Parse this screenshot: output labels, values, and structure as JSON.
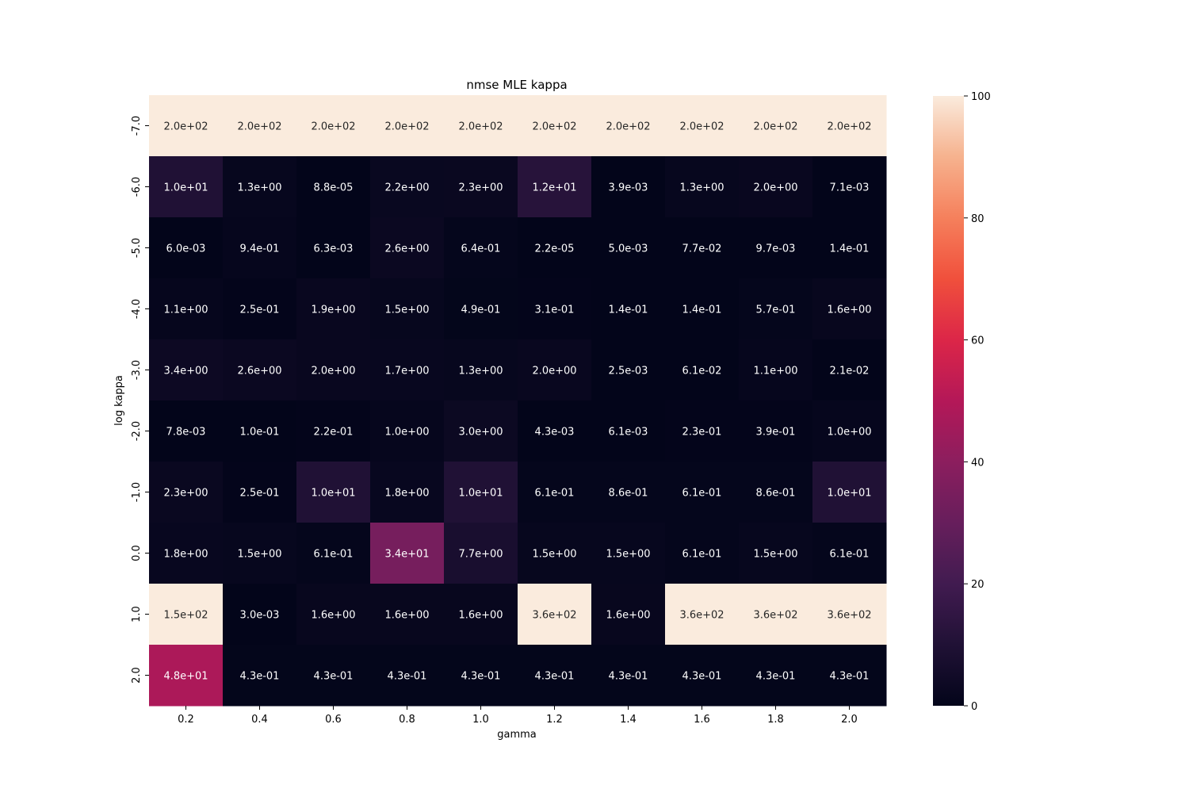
{
  "chart_data": {
    "type": "heatmap",
    "title": "nmse MLE  kappa",
    "xlabel": "gamma",
    "ylabel": "log kappa",
    "x_categories": [
      "0.2",
      "0.4",
      "0.6",
      "0.8",
      "1.0",
      "1.2",
      "1.4",
      "1.6",
      "1.8",
      "2.0"
    ],
    "y_categories": [
      "-7.0",
      "-6.0",
      "-5.0",
      "-4.0",
      "-3.0",
      "-2.0",
      "-1.0",
      "0.0",
      "1.0",
      "2.0"
    ],
    "values": [
      [
        200,
        200,
        200,
        200,
        200,
        200,
        200,
        200,
        200,
        200
      ],
      [
        10,
        1.3,
        8.8e-05,
        2.2,
        2.3,
        12,
        0.0039,
        1.3,
        2.0,
        0.0071
      ],
      [
        0.006,
        0.94,
        0.0063,
        2.6,
        0.64,
        2.2e-05,
        0.005,
        0.077,
        0.0097,
        0.14
      ],
      [
        1.1,
        0.25,
        1.9,
        1.5,
        0.49,
        0.31,
        0.14,
        0.14,
        0.57,
        1.6
      ],
      [
        3.4,
        2.6,
        2.0,
        1.7,
        1.3,
        2.0,
        0.0025,
        0.061,
        1.1,
        0.021
      ],
      [
        0.0078,
        0.1,
        0.22,
        1.0,
        3.0,
        0.0043,
        0.0061,
        0.23,
        0.39,
        1.0
      ],
      [
        2.3,
        0.25,
        10,
        1.8,
        10,
        0.61,
        0.86,
        0.61,
        0.86,
        10
      ],
      [
        1.8,
        1.5,
        0.61,
        34,
        7.7,
        1.5,
        1.5,
        0.61,
        1.5,
        0.61
      ],
      [
        150,
        0.003,
        1.6,
        1.6,
        1.6,
        360,
        1.6,
        360,
        360,
        360
      ],
      [
        48,
        0.43,
        0.43,
        0.43,
        0.43,
        0.43,
        0.43,
        0.43,
        0.43,
        0.43
      ]
    ],
    "annotations": [
      [
        "2.0e+02",
        "2.0e+02",
        "2.0e+02",
        "2.0e+02",
        "2.0e+02",
        "2.0e+02",
        "2.0e+02",
        "2.0e+02",
        "2.0e+02",
        "2.0e+02"
      ],
      [
        "1.0e+01",
        "1.3e+00",
        "8.8e-05",
        "2.2e+00",
        "2.3e+00",
        "1.2e+01",
        "3.9e-03",
        "1.3e+00",
        "2.0e+00",
        "7.1e-03"
      ],
      [
        "6.0e-03",
        "9.4e-01",
        "6.3e-03",
        "2.6e+00",
        "6.4e-01",
        "2.2e-05",
        "5.0e-03",
        "7.7e-02",
        "9.7e-03",
        "1.4e-01"
      ],
      [
        "1.1e+00",
        "2.5e-01",
        "1.9e+00",
        "1.5e+00",
        "4.9e-01",
        "3.1e-01",
        "1.4e-01",
        "1.4e-01",
        "5.7e-01",
        "1.6e+00"
      ],
      [
        "3.4e+00",
        "2.6e+00",
        "2.0e+00",
        "1.7e+00",
        "1.3e+00",
        "2.0e+00",
        "2.5e-03",
        "6.1e-02",
        "1.1e+00",
        "2.1e-02"
      ],
      [
        "7.8e-03",
        "1.0e-01",
        "2.2e-01",
        "1.0e+00",
        "3.0e+00",
        "4.3e-03",
        "6.1e-03",
        "2.3e-01",
        "3.9e-01",
        "1.0e+00"
      ],
      [
        "2.3e+00",
        "2.5e-01",
        "1.0e+01",
        "1.8e+00",
        "1.0e+01",
        "6.1e-01",
        "8.6e-01",
        "6.1e-01",
        "8.6e-01",
        "1.0e+01"
      ],
      [
        "1.8e+00",
        "1.5e+00",
        "6.1e-01",
        "3.4e+01",
        "7.7e+00",
        "1.5e+00",
        "1.5e+00",
        "6.1e-01",
        "1.5e+00",
        "6.1e-01"
      ],
      [
        "1.5e+02",
        "3.0e-03",
        "1.6e+00",
        "1.6e+00",
        "1.6e+00",
        "3.6e+02",
        "1.6e+00",
        "3.6e+02",
        "3.6e+02",
        "3.6e+02"
      ],
      [
        "4.8e+01",
        "4.3e-01",
        "4.3e-01",
        "4.3e-01",
        "4.3e-01",
        "4.3e-01",
        "4.3e-01",
        "4.3e-01",
        "4.3e-01",
        "4.3e-01"
      ]
    ],
    "color_range": [
      0,
      100
    ],
    "colorbar_ticks": [
      "0",
      "20",
      "40",
      "60",
      "80",
      "100"
    ],
    "colormap": "rocket",
    "grid": false
  }
}
